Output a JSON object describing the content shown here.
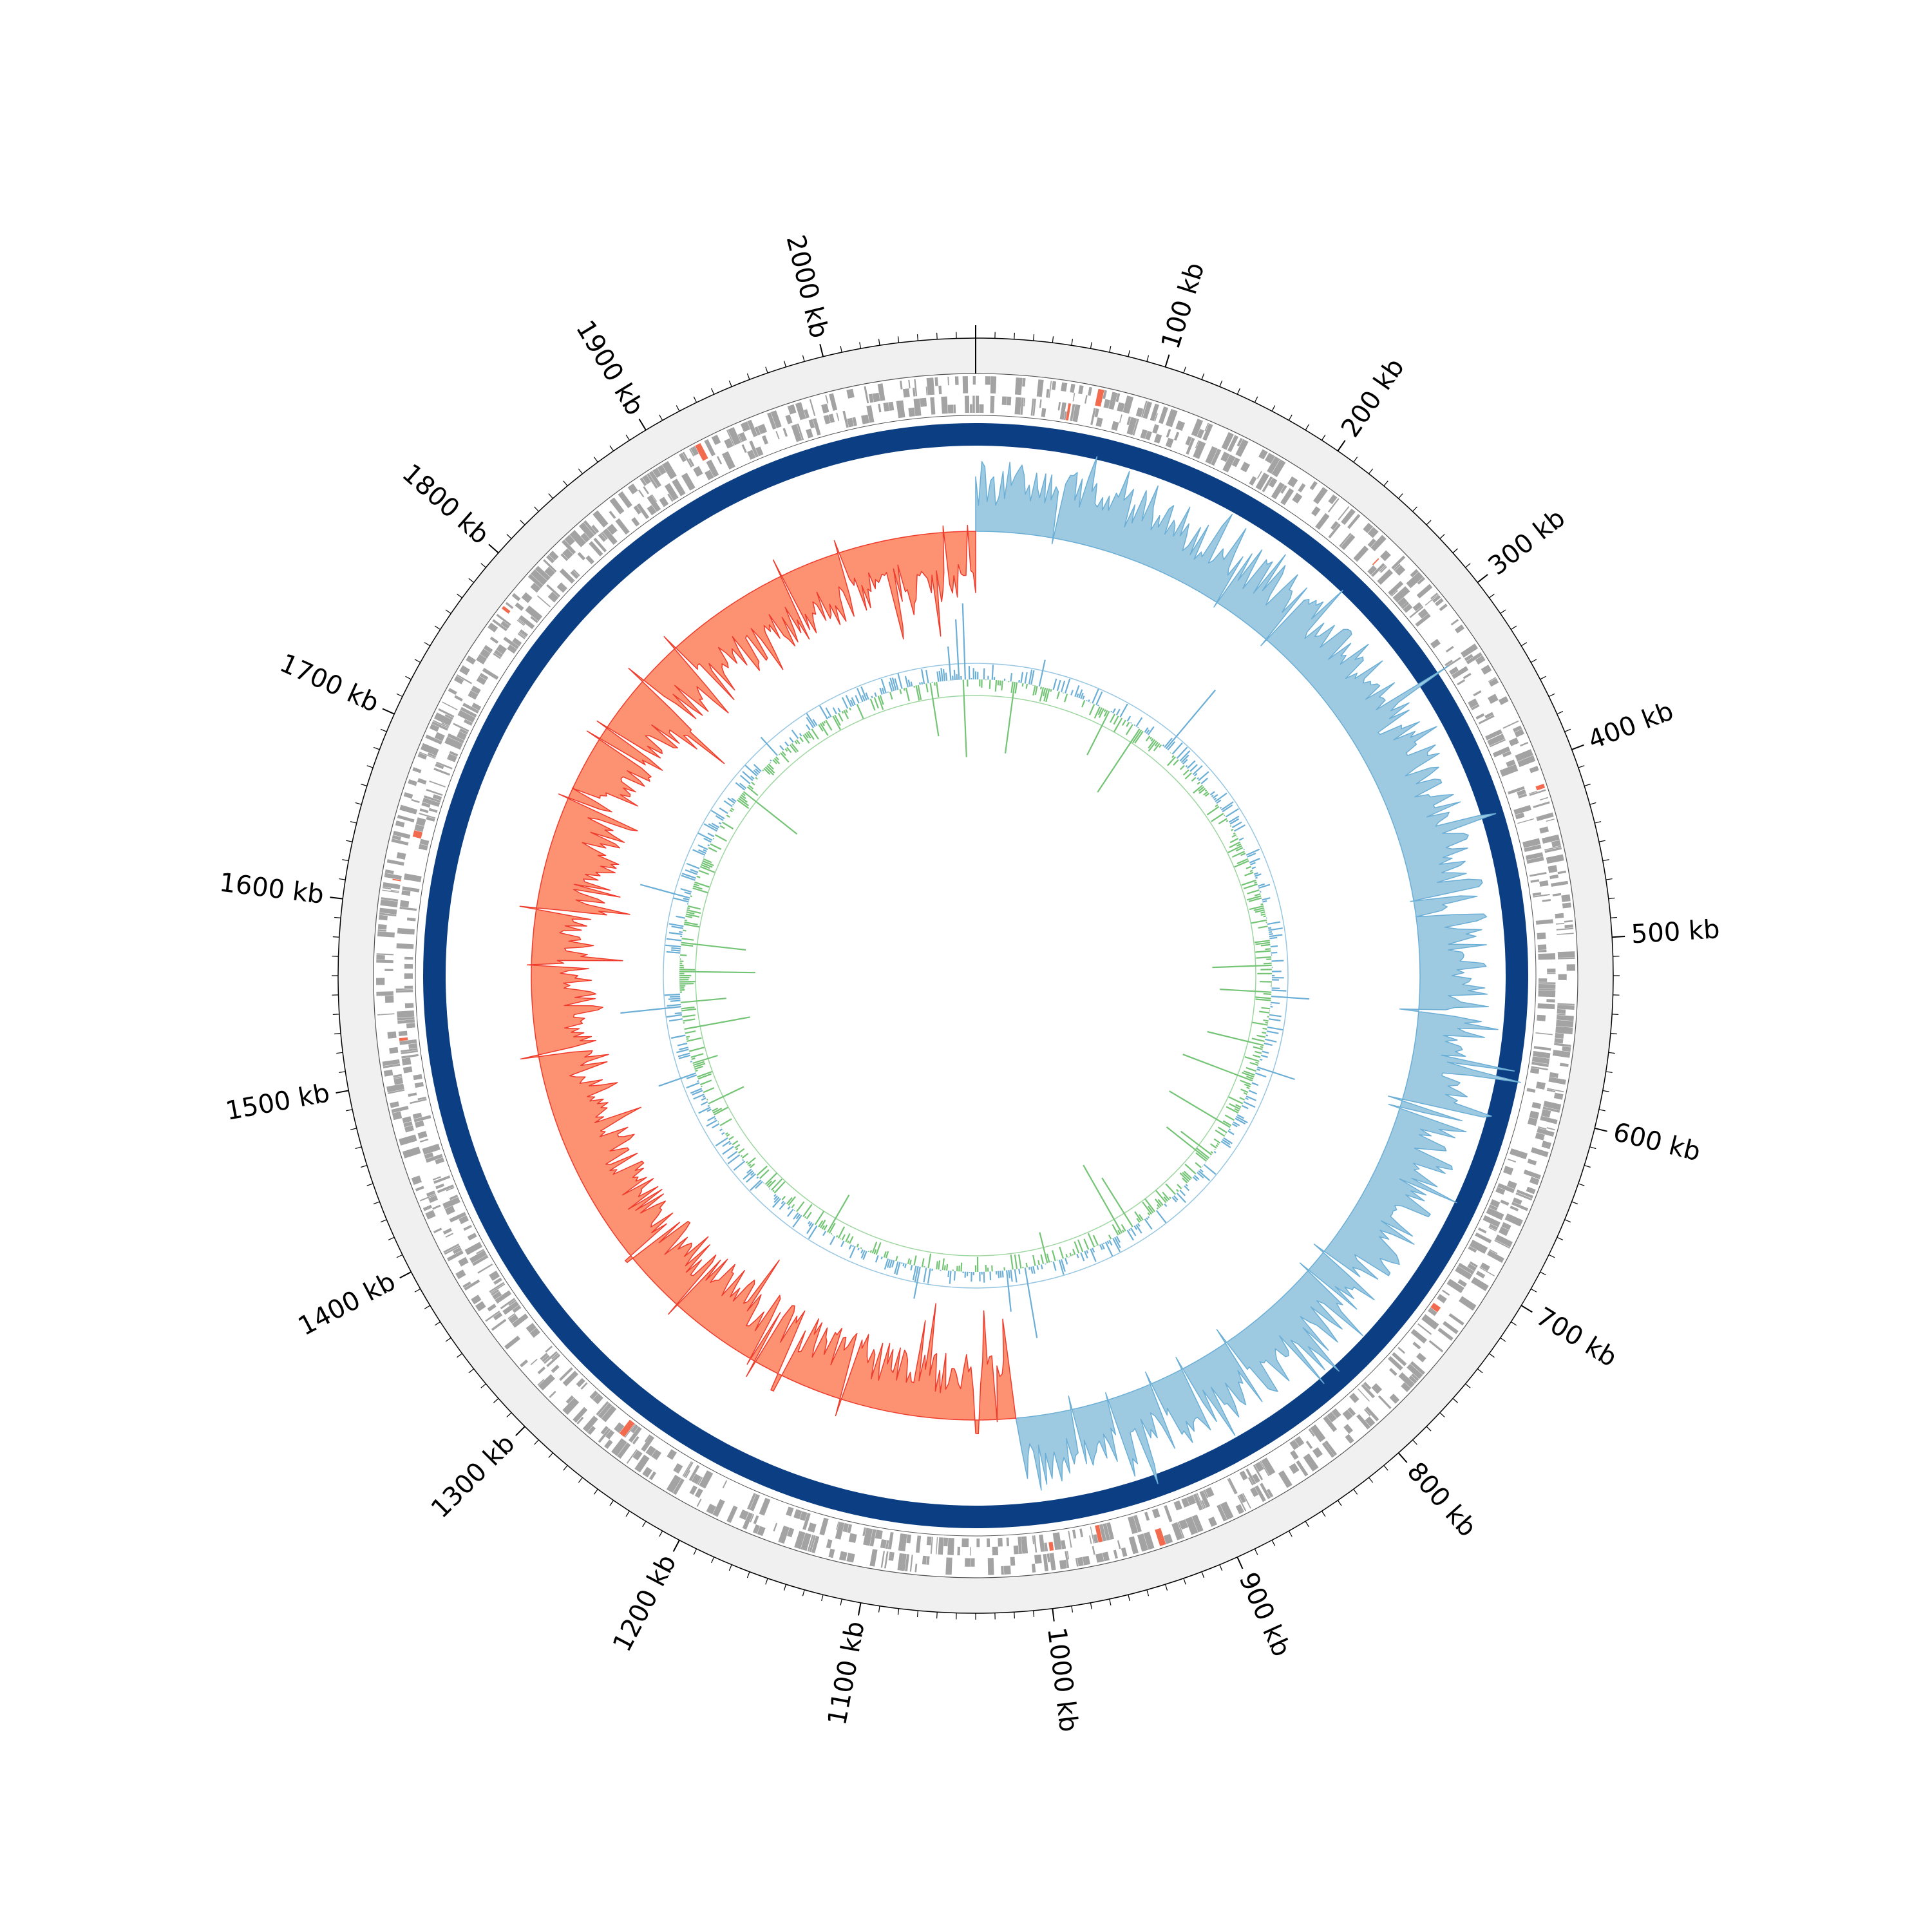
{
  "chart_data": {
    "type": "circular-genome",
    "genome_length_kb": 2080,
    "axis": {
      "major_tick_step_kb": 100,
      "minor_tick_step_kb": 10,
      "labels": [
        {
          "kb": 100,
          "text": "100 kb"
        },
        {
          "kb": 200,
          "text": "200 kb"
        },
        {
          "kb": 300,
          "text": "300 kb"
        },
        {
          "kb": 400,
          "text": "400 kb"
        },
        {
          "kb": 500,
          "text": "500 kb"
        },
        {
          "kb": 600,
          "text": "600 kb"
        },
        {
          "kb": 700,
          "text": "700 kb"
        },
        {
          "kb": 800,
          "text": "800 kb"
        },
        {
          "kb": 900,
          "text": "900 kb"
        },
        {
          "kb": 1000,
          "text": "1000 kb"
        },
        {
          "kb": 1100,
          "text": "1100 kb"
        },
        {
          "kb": 1200,
          "text": "1200 kb"
        },
        {
          "kb": 1300,
          "text": "1300 kb"
        },
        {
          "kb": 1400,
          "text": "1400 kb"
        },
        {
          "kb": 1500,
          "text": "1500 kb"
        },
        {
          "kb": 1600,
          "text": "1600 kb"
        },
        {
          "kb": 1700,
          "text": "1700 kb"
        },
        {
          "kb": 1800,
          "text": "1800 kb"
        },
        {
          "kb": 1900,
          "text": "1900 kb"
        },
        {
          "kb": 2000,
          "text": "2000 kb"
        }
      ]
    },
    "tracks": [
      {
        "name": "forward-strand-features",
        "color": "#a3a3a3",
        "highlight_color": "#f26b4f"
      },
      {
        "name": "reverse-strand-features",
        "color": "#a3a3a3",
        "highlight_color": "#f26b4f"
      },
      {
        "name": "contig-ring",
        "color": "#0b3e82"
      },
      {
        "name": "gc-skew",
        "positive_color": "#9ecae1",
        "negative_color": "#fc9272",
        "spike_positive": "#6baed6",
        "spike_negative": "#ef3b2c",
        "ori_to_ter_positive_kb": [
          0,
          1010
        ],
        "ter_to_ori_negative_kb": [
          1010,
          2080
        ]
      },
      {
        "name": "gc-content",
        "above_color": "#6baed6",
        "below_color": "#74c476"
      }
    ],
    "colors": {
      "outer_band": "#f0f0f0",
      "ring_outline": "#555555"
    }
  }
}
